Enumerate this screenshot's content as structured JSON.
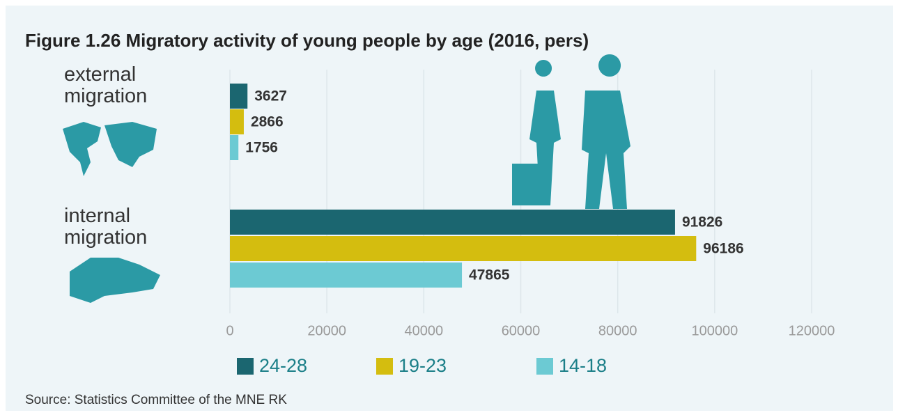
{
  "chart_data": {
    "type": "bar",
    "orientation": "horizontal",
    "title": "Figure 1.26 Migratory activity of young people by age (2016, pers)",
    "categories": [
      "external migration",
      "internal migration"
    ],
    "series": [
      {
        "name": "24-28",
        "color": "#1b6670",
        "values": [
          3627,
          91826
        ]
      },
      {
        "name": "19-23",
        "color": "#d4bd0f",
        "values": [
          2866,
          96186
        ]
      },
      {
        "name": "14-18",
        "color": "#6ccad3",
        "values": [
          1756,
          47865
        ]
      }
    ],
    "xlim": [
      0,
      120000
    ],
    "xticks": [
      0,
      20000,
      40000,
      60000,
      80000,
      100000,
      120000
    ],
    "grid": true,
    "legend": "bottom",
    "source": "Source: Statistics Committee of the MNE RK"
  }
}
